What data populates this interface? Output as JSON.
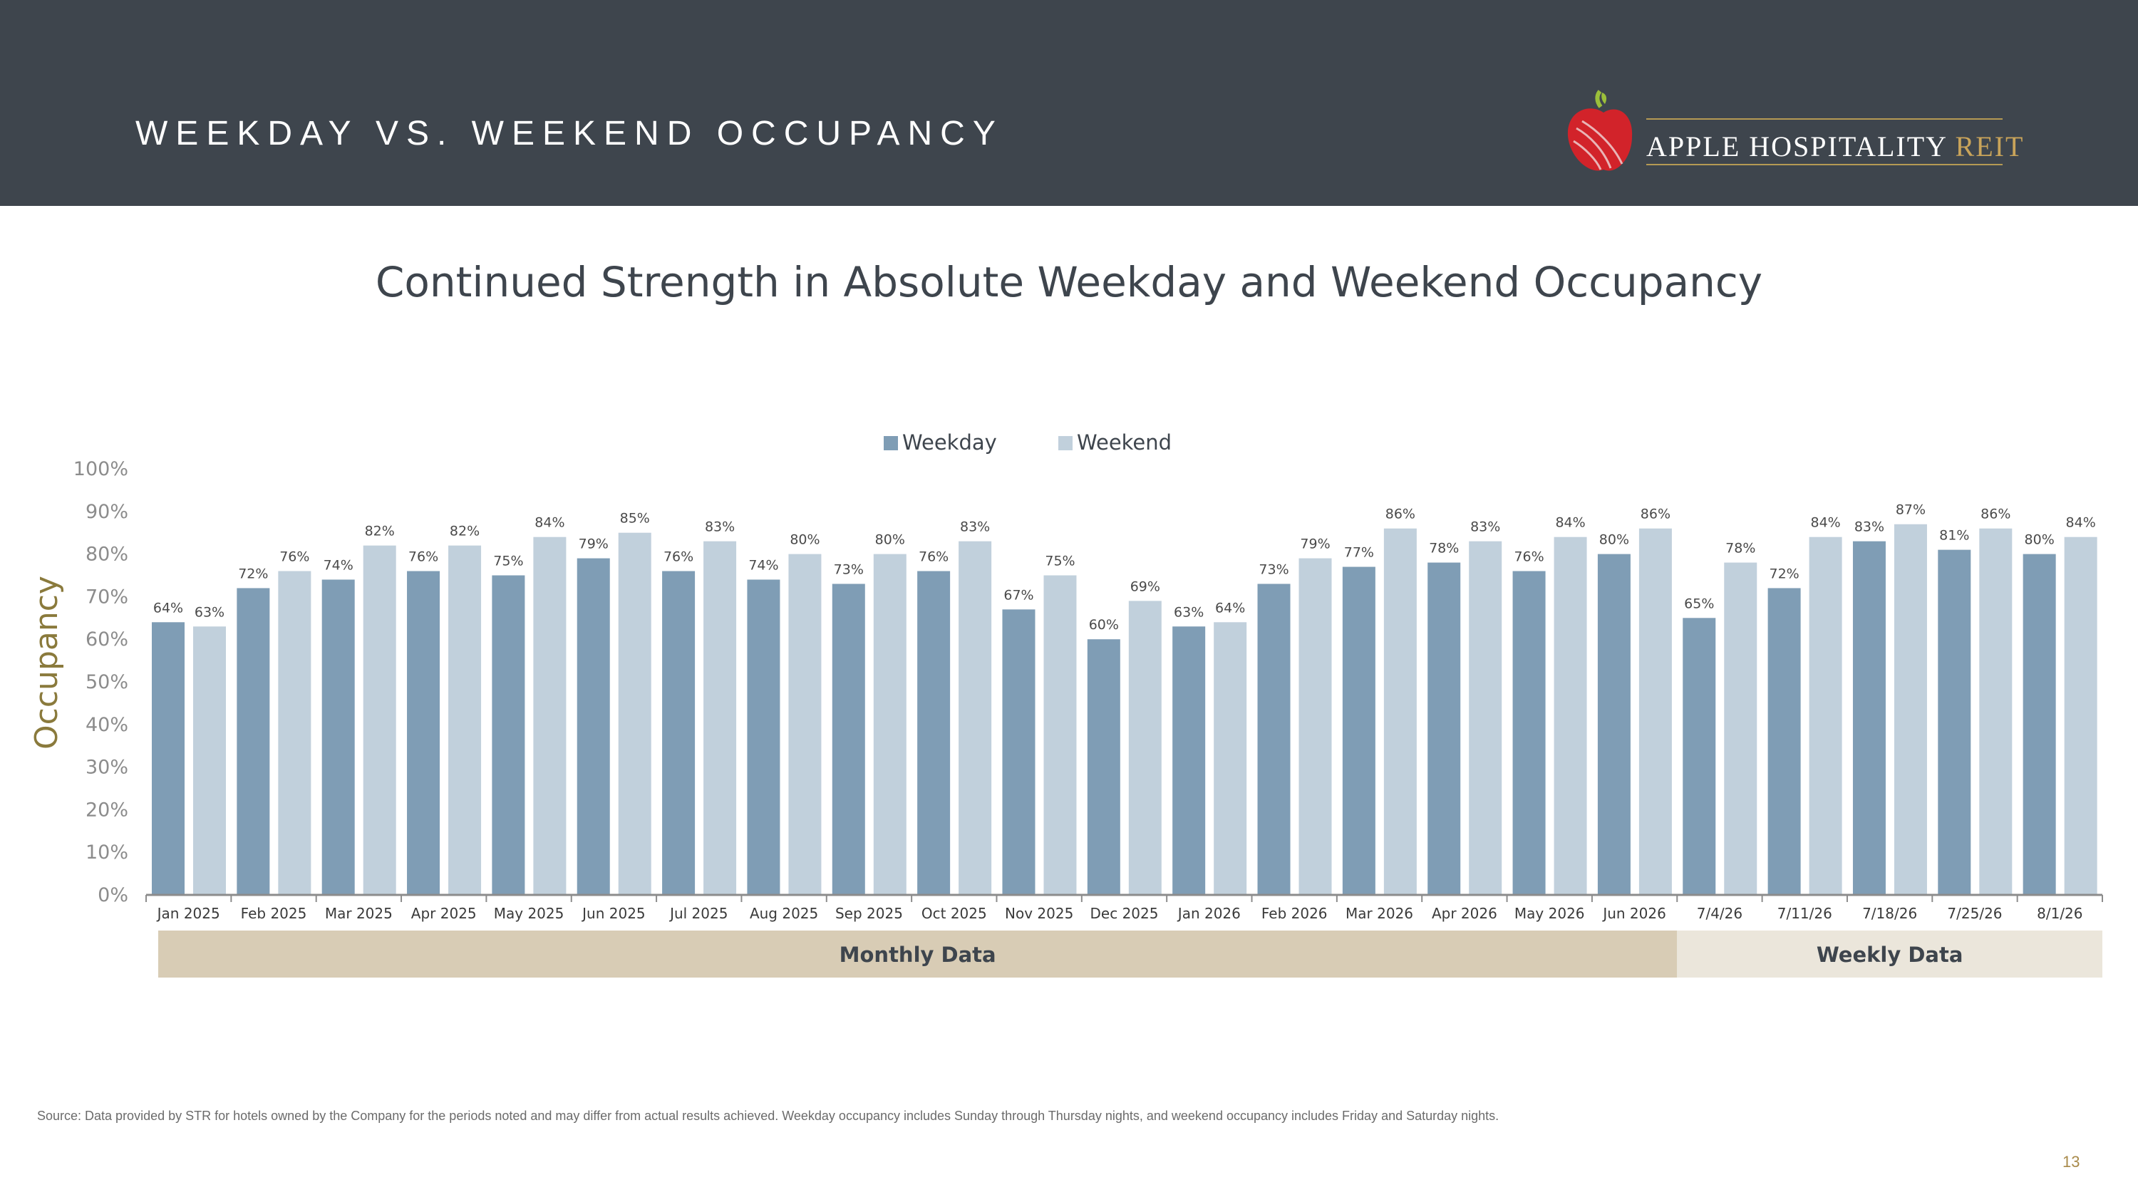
{
  "header": {
    "title": "WEEKDAY VS. WEEKEND OCCUPANCY"
  },
  "logo": {
    "text_main": "APPLE HOSPITALITY ",
    "text_accent": "REIT"
  },
  "subtitle": "Continued Strength in Absolute Weekday and Weekend Occupancy",
  "footer": {
    "source": "Source:  Data provided by STR for hotels owned by the Company for the periods noted and may differ from actual results achieved. Weekday occupancy includes Sunday through Thursday nights, and weekend occupancy includes Friday and Saturday nights.",
    "page_number": "13"
  },
  "colors": {
    "header_bg": "#3e454d",
    "weekday": "#7f9db5",
    "weekend": "#c1d0dc",
    "monthly_band": "#d8ccb5",
    "weekly_band": "#ebe6db",
    "ylabel": "#8a7a3c"
  },
  "chart_data": {
    "type": "bar",
    "ylabel": "Occupancy",
    "ylim": [
      0,
      100
    ],
    "yticks": [
      "0%",
      "10%",
      "20%",
      "30%",
      "40%",
      "50%",
      "60%",
      "70%",
      "80%",
      "90%",
      "100%"
    ],
    "legend_position": "top-center",
    "categories": [
      "Jan 2025",
      "Feb 2025",
      "Mar 2025",
      "Apr 2025",
      "May 2025",
      "Jun 2025",
      "Jul 2025",
      "Aug 2025",
      "Sep 2025",
      "Oct 2025",
      "Nov 2025",
      "Dec 2025",
      "Jan 2026",
      "Feb 2026",
      "Mar 2026",
      "Apr 2026",
      "May 2026",
      "Jun 2026",
      "7/4/26",
      "7/11/26",
      "7/18/26",
      "7/25/26",
      "8/1/26"
    ],
    "series": [
      {
        "name": "Weekday",
        "values": [
          64,
          72,
          74,
          76,
          75,
          79,
          76,
          74,
          73,
          76,
          67,
          60,
          63,
          73,
          77,
          78,
          76,
          80,
          65,
          72,
          83,
          81,
          80
        ]
      },
      {
        "name": "Weekend",
        "values": [
          63,
          76,
          82,
          82,
          84,
          85,
          83,
          80,
          80,
          83,
          75,
          69,
          64,
          79,
          86,
          83,
          84,
          86,
          78,
          84,
          87,
          86,
          84
        ]
      }
    ],
    "groups": [
      {
        "label": "Monthly Data",
        "count": 18
      },
      {
        "label": "Weekly Data",
        "count": 5
      }
    ]
  }
}
